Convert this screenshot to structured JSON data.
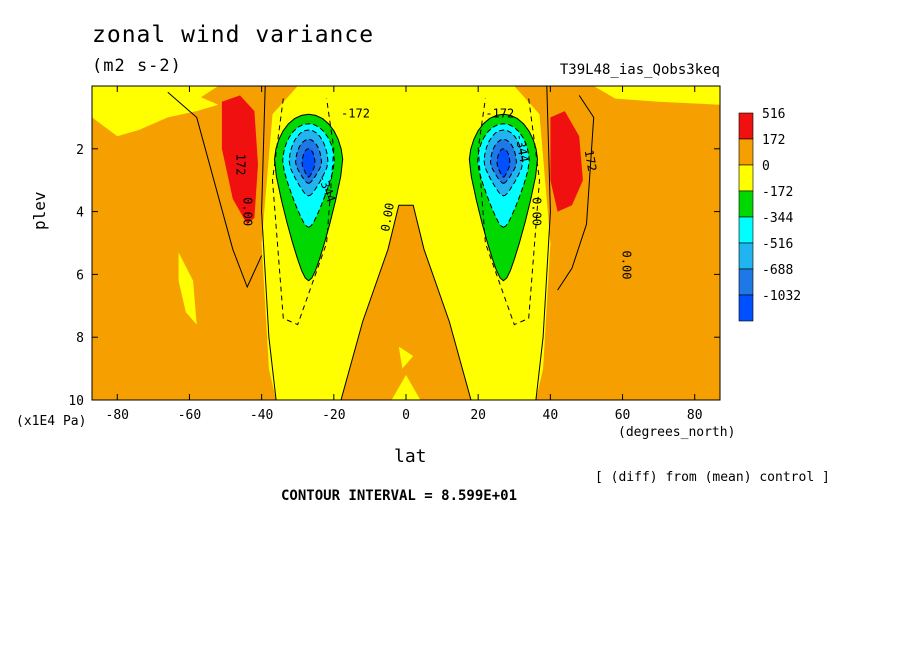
{
  "chart_data": {
    "type": "heatmap",
    "title": "zonal wind variance",
    "subtitle": "(m2 s-2)",
    "run_label": "T39L48_ias_Qobs3keq",
    "xlabel": "lat",
    "x_units": "(degrees_north)",
    "ylabel": "plev",
    "y_units": "(x1E4 Pa)",
    "xlim": [
      -87,
      87
    ],
    "ylim": [
      10,
      0
    ],
    "x_ticks": [
      "-80",
      "-60",
      "-40",
      "-20",
      "0",
      "20",
      "40",
      "60",
      "80"
    ],
    "y_ticks": [
      "2",
      "4",
      "6",
      "8",
      "10"
    ],
    "colorbar": {
      "levels": [
        "516",
        "172",
        "0",
        "-172",
        "-344",
        "-516",
        "-688",
        "-1032"
      ],
      "colors": [
        "#f01010",
        "#f5a000",
        "#ffff00",
        "#00d800",
        "#00ffff",
        "#20b4f0",
        "#1e78e6",
        "#0050ff"
      ]
    },
    "contour_labels": [
      "-172",
      "-172",
      "-344",
      "-344",
      "172",
      "172",
      "0.00",
      "0.00",
      "0.00",
      "0.00"
    ],
    "features": [
      {
        "label": "SH jet negative core",
        "lat": -27,
        "plev": 2.5,
        "min": -1032
      },
      {
        "label": "NH jet negative core",
        "lat": 27,
        "plev": 2.5,
        "min": -1032
      },
      {
        "label": "SH positive maximum",
        "lat": -45,
        "plev": 2.5,
        "max": 516
      },
      {
        "label": "NH positive maximum",
        "lat": 44,
        "plev": 2.5,
        "max": 516
      }
    ],
    "note": "[ (diff) from (mean) control ]",
    "contour_interval": "CONTOUR INTERVAL = 8.599E+01"
  }
}
